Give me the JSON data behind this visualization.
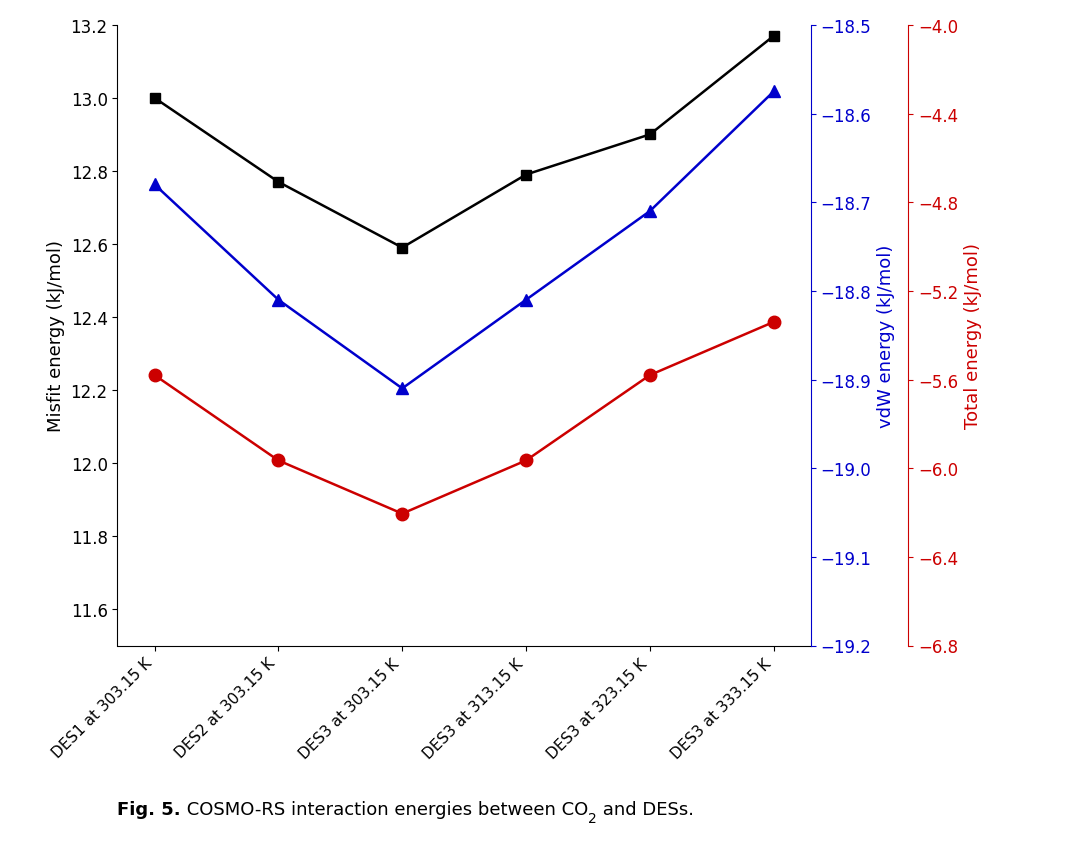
{
  "x_labels": [
    "DES1 at 303.15 K",
    "DES2 at 303.15 K",
    "DES3 at 303.15 K",
    "DES3 at 313.15 K",
    "DES3 at 323.15 K",
    "DES3 at 333.15 K"
  ],
  "misfit_energy": [
    13.0,
    12.77,
    12.59,
    12.79,
    12.9,
    13.17
  ],
  "vdw_energy": [
    -18.68,
    -18.81,
    -18.91,
    -18.81,
    -18.71,
    -18.575
  ],
  "total_energy": [
    -5.58,
    -5.965,
    -6.205,
    -5.965,
    -5.58,
    -5.34
  ],
  "misfit_color": "#000000",
  "vdw_color": "#0000cc",
  "total_color": "#cc0000",
  "left_ylabel": "Misfit energy (kJ/mol)",
  "right_blue_ylabel": "vdW energy (kJ/mol)",
  "right_red_ylabel": "Total energy (kJ/mol)",
  "left_ylim": [
    11.5,
    13.2
  ],
  "left_yticks": [
    11.6,
    11.8,
    12.0,
    12.2,
    12.4,
    12.6,
    12.8,
    13.0,
    13.2
  ],
  "vdw_ylim": [
    -19.2,
    -18.5
  ],
  "vdw_yticks": [
    -19.2,
    -19.1,
    -19.0,
    -18.9,
    -18.8,
    -18.7,
    -18.6,
    -18.5
  ],
  "total_ylim": [
    -6.8,
    -4.0
  ],
  "total_yticks": [
    -6.8,
    -6.4,
    -6.0,
    -5.6,
    -5.2,
    -4.8,
    -4.4,
    -4.0
  ],
  "background_color": "#ffffff",
  "caption_bold": "Fig. 5.",
  "caption_normal": " COSMO-RS interaction energies between CO",
  "caption_sub": "2",
  "caption_end": " and DESs."
}
